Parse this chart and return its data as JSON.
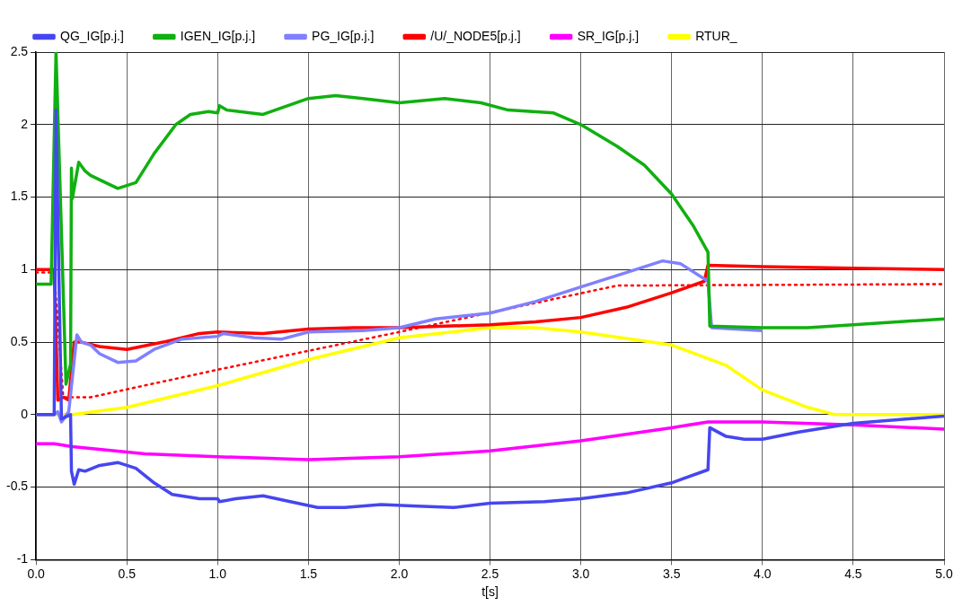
{
  "chart_data": {
    "type": "line",
    "xlabel": "t[s]",
    "xlim": [
      0,
      5
    ],
    "ylim": [
      -1,
      2.5
    ],
    "xticks": [
      {
        "value": 0,
        "label": "0.0"
      },
      {
        "value": 0.5,
        "label": "0.5"
      },
      {
        "value": 1,
        "label": "1.0"
      },
      {
        "value": 1.5,
        "label": "1.5"
      },
      {
        "value": 2,
        "label": "2.0"
      },
      {
        "value": 2.5,
        "label": "2.5"
      },
      {
        "value": 3,
        "label": "3.0"
      },
      {
        "value": 3.5,
        "label": "3.5"
      },
      {
        "value": 4,
        "label": "4.0"
      },
      {
        "value": 4.5,
        "label": "4.5"
      },
      {
        "value": 5,
        "label": "5.0"
      }
    ],
    "yticks": [
      -1,
      -0.5,
      0,
      0.5,
      1,
      1.5,
      2,
      2.5
    ],
    "grid": true,
    "legend": "top",
    "marker": "none",
    "series": [
      {
        "name": "QG_IG[p.j.]",
        "color": "#4646f0",
        "x": [
          0,
          0.1,
          0.11,
          0.14,
          0.19,
          0.195,
          0.21,
          0.235,
          0.27,
          0.35,
          0.45,
          0.55,
          0.65,
          0.75,
          0.9,
          1.0,
          1.01,
          1.1,
          1.25,
          1.4,
          1.55,
          1.7,
          1.9,
          2.1,
          2.3,
          2.5,
          2.8,
          3.0,
          3.25,
          3.5,
          3.7,
          3.71,
          3.8,
          3.9,
          4.0,
          4.2,
          4.5,
          5.0
        ],
        "values": [
          0,
          0,
          2.1,
          -0.03,
          0,
          -0.39,
          -0.48,
          -0.38,
          -0.39,
          -0.35,
          -0.33,
          -0.37,
          -0.47,
          -0.55,
          -0.58,
          -0.58,
          -0.6,
          -0.58,
          -0.56,
          -0.6,
          -0.64,
          -0.64,
          -0.62,
          -0.63,
          -0.64,
          -0.61,
          -0.6,
          -0.58,
          -0.54,
          -0.47,
          -0.38,
          -0.09,
          -0.15,
          -0.17,
          -0.17,
          -0.12,
          -0.06,
          -0.01
        ]
      },
      {
        "name": "IGEN_IG[p.j.]",
        "color": "#10b010",
        "x": [
          0,
          0.083,
          0.11,
          0.165,
          0.19,
          0.195,
          0.2,
          0.235,
          0.27,
          0.3,
          0.45,
          0.55,
          0.65,
          0.77,
          0.85,
          0.95,
          1.0,
          1.01,
          1.05,
          1.25,
          1.5,
          1.65,
          1.8,
          2.0,
          2.25,
          2.45,
          2.6,
          2.85,
          3.0,
          3.2,
          3.35,
          3.5,
          3.62,
          3.7,
          3.71,
          4.0,
          4.25,
          4.5,
          5.0
        ],
        "values": [
          0.9,
          0.9,
          2.5,
          0.21,
          0.35,
          1.7,
          1.49,
          1.74,
          1.68,
          1.65,
          1.56,
          1.6,
          1.8,
          2.0,
          2.07,
          2.09,
          2.08,
          2.13,
          2.1,
          2.07,
          2.18,
          2.2,
          2.18,
          2.15,
          2.18,
          2.15,
          2.1,
          2.08,
          2.0,
          1.85,
          1.72,
          1.52,
          1.3,
          1.12,
          0.61,
          0.6,
          0.6,
          0.62,
          0.66
        ]
      },
      {
        "name": "PG_IG[p.j.]",
        "color": "#8080ff",
        "x": [
          0,
          0.1,
          0.12,
          0.14,
          0.18,
          0.225,
          0.25,
          0.3,
          0.35,
          0.45,
          0.55,
          0.65,
          0.8,
          1.0,
          1.03,
          1.2,
          1.35,
          1.5,
          1.8,
          2.0,
          2.2,
          2.5,
          2.75,
          3.0,
          3.25,
          3.45,
          3.55,
          3.7,
          3.72,
          4.0
        ],
        "values": [
          0,
          0,
          0.02,
          -0.05,
          0.02,
          0.55,
          0.5,
          0.48,
          0.42,
          0.36,
          0.37,
          0.45,
          0.52,
          0.54,
          0.56,
          0.53,
          0.52,
          0.57,
          0.58,
          0.6,
          0.66,
          0.7,
          0.78,
          0.88,
          0.98,
          1.06,
          1.04,
          0.92,
          0.6,
          0.58
        ]
      },
      {
        "name": "/U/_NODE5[p.j.]",
        "color": "#ff0000",
        "x": [
          0,
          0.1,
          0.12,
          0.15,
          0.18,
          0.21,
          0.25,
          0.35,
          0.5,
          0.7,
          0.9,
          1.0,
          1.25,
          1.5,
          1.75,
          2.0,
          2.5,
          2.75,
          3.0,
          3.25,
          3.5,
          3.68,
          3.7,
          4.0,
          4.5,
          5.0
        ],
        "values": [
          1.0,
          1.0,
          0.1,
          0.12,
          0.1,
          0.5,
          0.5,
          0.47,
          0.45,
          0.5,
          0.56,
          0.57,
          0.56,
          0.59,
          0.6,
          0.6,
          0.62,
          0.64,
          0.67,
          0.74,
          0.84,
          0.92,
          1.03,
          1.02,
          1.01,
          1.0
        ]
      },
      {
        "name": "SR_IG[p.j.]",
        "color": "#ff00ff",
        "x": [
          0,
          0.1,
          0.2,
          0.6,
          1.0,
          1.5,
          2.0,
          2.5,
          3.0,
          3.5,
          3.7,
          4.0,
          4.5,
          5.0
        ],
        "values": [
          -0.2,
          -0.2,
          -0.22,
          -0.27,
          -0.29,
          -0.31,
          -0.29,
          -0.25,
          -0.18,
          -0.09,
          -0.05,
          -0.05,
          -0.07,
          -0.1
        ]
      },
      {
        "name": "RTUR_",
        "color": "#ffff00",
        "x": [
          0,
          0.2,
          0.5,
          1.0,
          1.5,
          2.0,
          2.5,
          2.75,
          3.0,
          3.5,
          3.8,
          4.0,
          4.25,
          4.4,
          5.0
        ],
        "values": [
          0,
          0,
          0.05,
          0.2,
          0.38,
          0.53,
          0.6,
          0.6,
          0.57,
          0.48,
          0.34,
          0.17,
          0.05,
          0,
          0
        ]
      },
      {
        "color": "#ff0000",
        "line_style": "dotted",
        "x": [
          0,
          0.1,
          0.15,
          0.3,
          1.0,
          2.0,
          3.2,
          5.0
        ],
        "values": [
          0.98,
          0.98,
          0.12,
          0.12,
          0.31,
          0.57,
          0.89,
          0.9
        ]
      }
    ]
  }
}
